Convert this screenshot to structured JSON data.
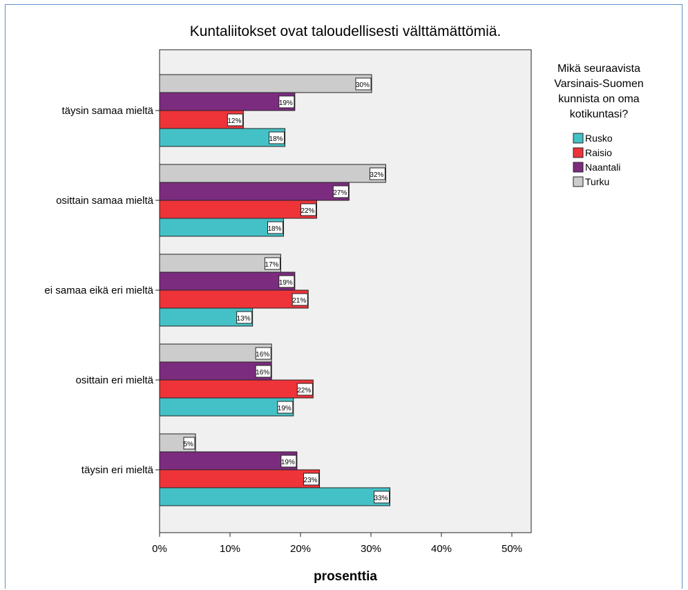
{
  "chart_data": {
    "type": "bar",
    "orientation": "horizontal",
    "title": "Kuntaliitokset ovat taloudellisesti välttämättömiä.",
    "xlabel": "prosenttia",
    "ylabel": "",
    "xlim": [
      0,
      53
    ],
    "xticks": [
      0,
      10,
      20,
      30,
      40,
      50
    ],
    "tick_suffix": "%",
    "categories": [
      "täysin samaa mieltä",
      "osittain samaa mieltä",
      "ei samaa eikä eri mieltä",
      "osittain eri mieltä",
      "täysin eri mieltä"
    ],
    "legend_title": [
      "Mikä seuraavista",
      "Varsinais-Suomen",
      "kunnista on oma",
      "kotikuntasi?"
    ],
    "legend_position": "right",
    "series": [
      {
        "name": "Rusko",
        "color": "#44c1c6",
        "values": [
          17.8,
          17.6,
          13.2,
          19.0,
          32.7
        ],
        "labels": [
          "18%",
          "18%",
          "13%",
          "19%",
          "33%"
        ]
      },
      {
        "name": "Raisio",
        "color": "#ee3439",
        "values": [
          11.9,
          22.3,
          21.1,
          21.8,
          22.7
        ],
        "labels": [
          "12%",
          "22%",
          "21%",
          "22%",
          "23%"
        ]
      },
      {
        "name": "Naantali",
        "color": "#7c2c7f",
        "values": [
          19.2,
          26.9,
          19.2,
          15.9,
          19.5
        ],
        "labels": [
          "19%",
          "27%",
          "19%",
          "16%",
          "19%"
        ]
      },
      {
        "name": "Turku",
        "color": "#cccccc",
        "values": [
          30.1,
          32.1,
          17.2,
          15.9,
          5.1
        ],
        "labels": [
          "30%",
          "32%",
          "17%",
          "16%",
          "5%"
        ]
      }
    ],
    "plot_background": "#f0f0f0"
  }
}
